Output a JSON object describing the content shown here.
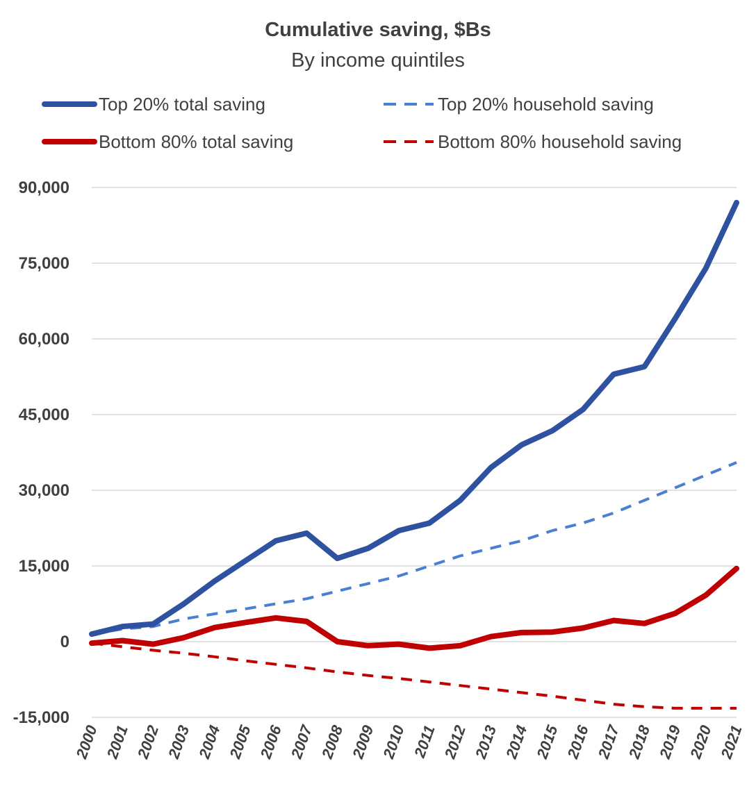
{
  "chart_data": {
    "type": "line",
    "title": "Cumulative saving, $Bs",
    "subtitle": "By income quintiles",
    "xlabel": "",
    "ylabel": "",
    "ylim": [
      -15000,
      90000
    ],
    "grid": true,
    "legend_position": "top",
    "y_ticks": [
      -15000,
      0,
      15000,
      30000,
      45000,
      60000,
      75000,
      90000
    ],
    "y_tick_labels": [
      "-15,000",
      "0",
      "15,000",
      "30,000",
      "45,000",
      "60,000",
      "75,000",
      "90,000"
    ],
    "categories": [
      "2000",
      "2001",
      "2002",
      "2003",
      "2004",
      "2005",
      "2006",
      "2007",
      "2008",
      "2009",
      "2010",
      "2011",
      "2012",
      "2013",
      "2014",
      "2015",
      "2016",
      "2017",
      "2018",
      "2019",
      "2020",
      "2021"
    ],
    "series": [
      {
        "name": "Top 20% total saving",
        "color": "#2f52a0",
        "style": "solid",
        "values": [
          1500,
          3000,
          3500,
          7500,
          12000,
          16000,
          20000,
          21500,
          16500,
          18500,
          22000,
          23500,
          28000,
          34500,
          39000,
          41800,
          46000,
          53000,
          54500,
          64000,
          74000,
          87000
        ]
      },
      {
        "name": "Top 20% household saving",
        "color": "#4a7fd1",
        "style": "dashed",
        "values": [
          1500,
          2500,
          3000,
          4500,
          5500,
          6500,
          7500,
          8500,
          10000,
          11500,
          13000,
          15000,
          17000,
          18500,
          20000,
          22000,
          23500,
          25500,
          28000,
          30500,
          33000,
          35500
        ]
      },
      {
        "name": "Bottom 80% total saving",
        "color": "#c00000",
        "style": "solid",
        "values": [
          -300,
          200,
          -500,
          800,
          2800,
          3800,
          4700,
          4000,
          0,
          -800,
          -500,
          -1300,
          -800,
          1000,
          1800,
          1900,
          2700,
          4200,
          3600,
          5600,
          9200,
          14500
        ]
      },
      {
        "name": "Bottom 80% household saving",
        "color": "#c00000",
        "style": "dashed",
        "values": [
          -300,
          -1000,
          -1700,
          -2300,
          -3000,
          -3800,
          -4500,
          -5200,
          -6000,
          -6700,
          -7300,
          -8000,
          -8700,
          -9400,
          -10100,
          -10800,
          -11600,
          -12400,
          -12900,
          -13200,
          -13200,
          -13200
        ]
      }
    ]
  }
}
